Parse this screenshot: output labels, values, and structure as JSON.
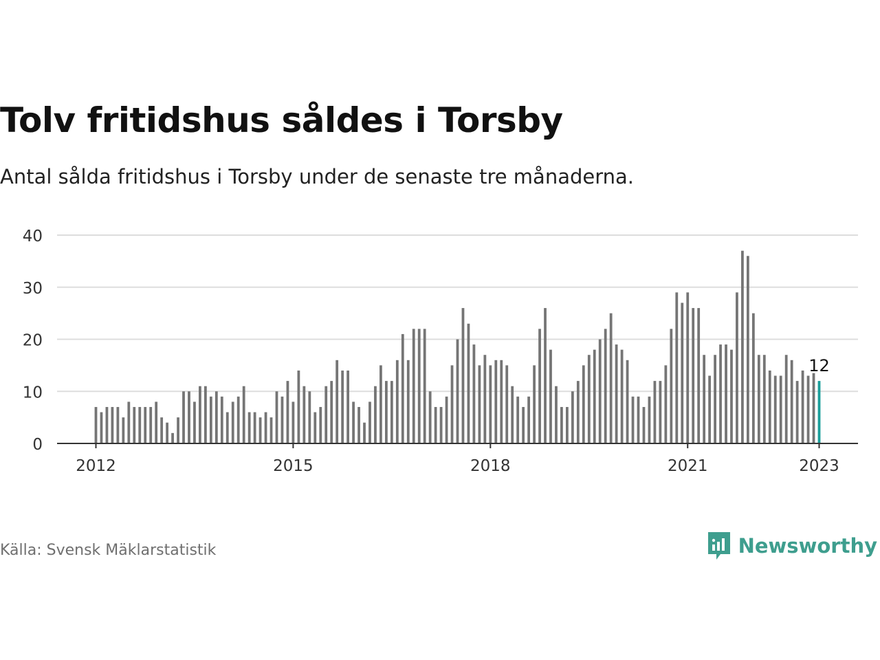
{
  "title": "Tolv fritidshus såldes i Torsby",
  "subtitle": "Antal sålda fritidshus i Torsby under de senaste tre månaderna.",
  "source": "Källa: Svensk Mäklarstatistik",
  "brand": {
    "name": "Newsworthy",
    "icon": "newsworthy-logo-icon",
    "color": "#3e9e8e"
  },
  "colors": {
    "bar": "#757575",
    "highlight": "#1a9e9a",
    "grid": "#dddddd",
    "axis": "#333333"
  },
  "chart_data": {
    "type": "bar",
    "x_start": "2012-01",
    "x_ticks": [
      "2012",
      "2015",
      "2018",
      "2021",
      "2023"
    ],
    "y_ticks": [
      0,
      10,
      20,
      30,
      40
    ],
    "ylim": [
      0,
      40
    ],
    "grid": true,
    "values": [
      7,
      6,
      7,
      7,
      7,
      5,
      8,
      7,
      7,
      7,
      7,
      8,
      5,
      4,
      2,
      5,
      10,
      10,
      8,
      11,
      11,
      9,
      10,
      9,
      6,
      8,
      9,
      11,
      6,
      6,
      5,
      6,
      5,
      10,
      9,
      12,
      8,
      14,
      11,
      10,
      6,
      7,
      11,
      12,
      16,
      14,
      14,
      8,
      7,
      4,
      8,
      11,
      15,
      12,
      12,
      16,
      21,
      16,
      22,
      22,
      22,
      10,
      7,
      7,
      9,
      15,
      20,
      26,
      23,
      19,
      15,
      17,
      15,
      16,
      16,
      15,
      11,
      9,
      7,
      9,
      15,
      22,
      26,
      18,
      11,
      7,
      7,
      10,
      12,
      15,
      17,
      18,
      20,
      22,
      25,
      19,
      18,
      16,
      9,
      9,
      7,
      9,
      12,
      12,
      15,
      22,
      29,
      27,
      29,
      26,
      26,
      17,
      13,
      17,
      19,
      19,
      18,
      29,
      37,
      36,
      25,
      17,
      17,
      14,
      13,
      13,
      17,
      16,
      12,
      14,
      13,
      13.5,
      12
    ],
    "highlight_label": "12"
  }
}
